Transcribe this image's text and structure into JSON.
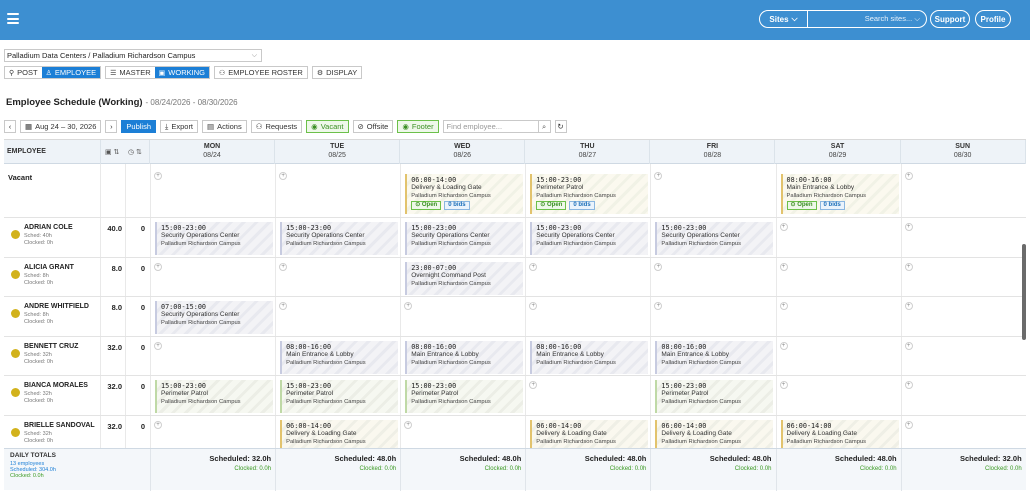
{
  "topbar": {
    "sites_label": "Sites",
    "search_placeholder": "Search sites...",
    "support_label": "Support",
    "profile_label": "Profile",
    "color": "#3d8fd1"
  },
  "site_select": {
    "value": "Palladium Data Centers / Palladium Richardson Campus"
  },
  "view_tabs": [
    {
      "label": "POST",
      "icon": "org-chart-icon",
      "active": false
    },
    {
      "label": "EMPLOYEE",
      "icon": "user-icon",
      "active": true
    },
    {
      "label": "MASTER",
      "icon": "list-icon",
      "active": false
    },
    {
      "label": "WORKING",
      "icon": "calendar-icon",
      "active": true
    },
    {
      "label": "EMPLOYEE ROSTER",
      "icon": "users-icon",
      "active": false
    },
    {
      "label": "DISPLAY",
      "icon": "gear-icon",
      "active": false
    }
  ],
  "page": {
    "title": "Employee Schedule (Working)",
    "date_range": "- 08/24/2026 - 08/30/2026"
  },
  "toolbar": {
    "range_label": "Aug 24 – 30, 2026",
    "publish": "Publish",
    "export": "Export",
    "actions": "Actions",
    "requests": "Requests",
    "vacant": "Vacant",
    "offsite": "Offsite",
    "footer": "Footer",
    "find_placeholder": "Find employee..."
  },
  "header": {
    "employee": "EMPLOYEE",
    "days": [
      {
        "day": "MON",
        "date": "08/24"
      },
      {
        "day": "TUE",
        "date": "08/25"
      },
      {
        "day": "WED",
        "date": "08/26"
      },
      {
        "day": "THU",
        "date": "08/27"
      },
      {
        "day": "FRI",
        "date": "08/28"
      },
      {
        "day": "SAT",
        "date": "08/29"
      },
      {
        "day": "SUN",
        "date": "08/30"
      }
    ]
  },
  "vacant": {
    "label": "Vacant",
    "open_label": "Open",
    "bids_label": "0 bids",
    "shifts": [
      {
        "day": 2,
        "time": "06:00-14:00",
        "post": "Delivery & Loading Gate",
        "site": "Palladium Richardson Campus"
      },
      {
        "day": 3,
        "time": "15:00-23:00",
        "post": "Perimeter Patrol",
        "site": "Palladium Richardson Campus"
      },
      {
        "day": 5,
        "time": "08:00-16:00",
        "post": "Main Entrance & Lobby",
        "site": "Palladium Richardson Campus"
      }
    ]
  },
  "employees": [
    {
      "name": "ADRIAN COLE",
      "sched": "Sched: 40h",
      "clocked": "Clocked: 0h",
      "hours": "40.0",
      "ot": "0",
      "shifts": [
        {
          "day": 0,
          "time": "15:00-23:00",
          "post": "Security Operations Center",
          "site": "Palladium Richardson Campus"
        },
        {
          "day": 1,
          "time": "15:00-23:00",
          "post": "Security Operations Center",
          "site": "Palladium Richardson Campus"
        },
        {
          "day": 2,
          "time": "15:00-23:00",
          "post": "Security Operations Center",
          "site": "Palladium Richardson Campus"
        },
        {
          "day": 3,
          "time": "15:00-23:00",
          "post": "Security Operations Center",
          "site": "Palladium Richardson Campus"
        },
        {
          "day": 4,
          "time": "15:00-23:00",
          "post": "Security Operations Center",
          "site": "Palladium Richardson Campus"
        }
      ]
    },
    {
      "name": "ALICIA GRANT",
      "sched": "Sched: 8h",
      "clocked": "Clocked: 0h",
      "hours": "8.0",
      "ot": "0",
      "shifts": [
        {
          "day": 2,
          "time": "23:00-07:00",
          "post": "Overnight Command Post",
          "site": "Palladium Richardson Campus"
        }
      ]
    },
    {
      "name": "ANDRE WHITFIELD",
      "sched": "Sched: 8h",
      "clocked": "Clocked: 0h",
      "hours": "8.0",
      "ot": "0",
      "shifts": [
        {
          "day": 0,
          "time": "07:00-15:00",
          "post": "Security Operations Center",
          "site": "Palladium Richardson Campus"
        }
      ]
    },
    {
      "name": "BENNETT CRUZ",
      "sched": "Sched: 32h",
      "clocked": "Clocked: 0h",
      "hours": "32.0",
      "ot": "0",
      "shifts": [
        {
          "day": 1,
          "time": "08:00-16:00",
          "post": "Main Entrance & Lobby",
          "site": "Palladium Richardson Campus"
        },
        {
          "day": 2,
          "time": "08:00-16:00",
          "post": "Main Entrance & Lobby",
          "site": "Palladium Richardson Campus"
        },
        {
          "day": 3,
          "time": "08:00-16:00",
          "post": "Main Entrance & Lobby",
          "site": "Palladium Richardson Campus"
        },
        {
          "day": 4,
          "time": "08:00-16:00",
          "post": "Main Entrance & Lobby",
          "site": "Palladium Richardson Campus"
        }
      ]
    },
    {
      "name": "BIANCA MORALES",
      "sched": "Sched: 32h",
      "clocked": "Clocked: 0h",
      "hours": "32.0",
      "ot": "0",
      "shifts": [
        {
          "day": 0,
          "time": "15:00-23:00",
          "post": "Perimeter Patrol",
          "site": "Palladium Richardson Campus"
        },
        {
          "day": 1,
          "time": "15:00-23:00",
          "post": "Perimeter Patrol",
          "site": "Palladium Richardson Campus"
        },
        {
          "day": 2,
          "time": "15:00-23:00",
          "post": "Perimeter Patrol",
          "site": "Palladium Richardson Campus"
        },
        {
          "day": 4,
          "time": "15:00-23:00",
          "post": "Perimeter Patrol",
          "site": "Palladium Richardson Campus"
        }
      ]
    },
    {
      "name": "BRIELLE SANDOVAL",
      "sched": "Sched: 32h",
      "clocked": "Clocked: 0h",
      "hours": "32.0",
      "ot": "0",
      "shifts": [
        {
          "day": 1,
          "time": "06:00-14:00",
          "post": "Delivery & Loading Gate",
          "site": "Palladium Richardson Campus"
        },
        {
          "day": 3,
          "time": "06:00-14:00",
          "post": "Delivery & Loading Gate",
          "site": "Palladium Richardson Campus"
        },
        {
          "day": 4,
          "time": "06:00-14:00",
          "post": "Delivery & Loading Gate",
          "site": "Palladium Richardson Campus"
        },
        {
          "day": 5,
          "time": "06:00-14:00",
          "post": "Delivery & Loading Gate",
          "site": "Palladium Richardson Campus"
        }
      ]
    }
  ],
  "totals": {
    "label": "DAILY TOTALS",
    "employees": "13 employees",
    "scheduled": "Scheduled: 304.0h",
    "clocked": "Clocked: 0.0h",
    "days": [
      {
        "scheduled": "Scheduled: 32.0h",
        "clocked": "Clocked: 0.0h"
      },
      {
        "scheduled": "Scheduled: 48.0h",
        "clocked": "Clocked: 0.0h"
      },
      {
        "scheduled": "Scheduled: 48.0h",
        "clocked": "Clocked: 0.0h"
      },
      {
        "scheduled": "Scheduled: 48.0h",
        "clocked": "Clocked: 0.0h"
      },
      {
        "scheduled": "Scheduled: 48.0h",
        "clocked": "Clocked: 0.0h"
      },
      {
        "scheduled": "Scheduled: 48.0h",
        "clocked": "Clocked: 0.0h"
      },
      {
        "scheduled": "Scheduled: 32.0h",
        "clocked": "Clocked: 0.0h"
      }
    ]
  }
}
